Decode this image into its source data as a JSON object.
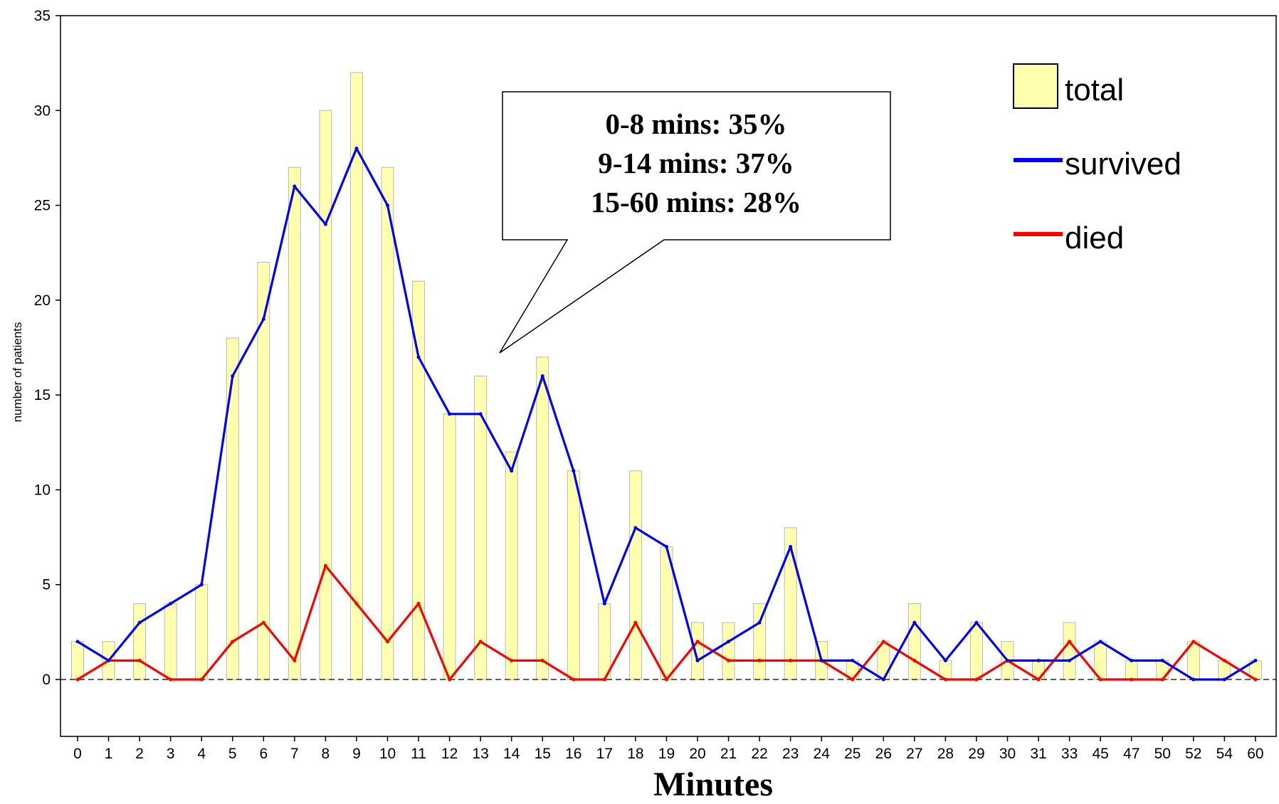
{
  "chart_data": {
    "type": "bar",
    "title": "",
    "xlabel": "Minutes",
    "ylabel": "number of patients",
    "ylim": [
      -3,
      35
    ],
    "yticks": [
      0,
      5,
      10,
      15,
      20,
      25,
      30,
      35
    ],
    "grid": false,
    "legend_position": "top-right",
    "categories": [
      "0",
      "1",
      "2",
      "3",
      "4",
      "5",
      "6",
      "7",
      "8",
      "9",
      "10",
      "11",
      "12",
      "13",
      "14",
      "15",
      "16",
      "17",
      "18",
      "19",
      "20",
      "21",
      "22",
      "23",
      "24",
      "25",
      "26",
      "27",
      "28",
      "29",
      "30",
      "31",
      "33",
      "45",
      "47",
      "50",
      "52",
      "54",
      "60"
    ],
    "series": [
      {
        "name": "total",
        "kind": "bar",
        "color": "#FFFFB0",
        "edge": "#B8B8B8",
        "values": [
          2,
          2,
          4,
          4,
          5,
          18,
          22,
          27,
          30,
          32,
          27,
          21,
          14,
          16,
          12,
          17,
          11,
          4,
          11,
          7,
          3,
          3,
          4,
          8,
          2,
          1,
          2,
          4,
          1,
          3,
          2,
          1,
          3,
          2,
          1,
          1,
          2,
          1,
          1
        ]
      },
      {
        "name": "survived",
        "kind": "line",
        "color": "#0000FF",
        "values": [
          2,
          1,
          3,
          4,
          5,
          16,
          19,
          26,
          24,
          28,
          25,
          17,
          14,
          14,
          11,
          16,
          11,
          4,
          8,
          7,
          1,
          2,
          3,
          7,
          1,
          1,
          0,
          3,
          1,
          3,
          1,
          1,
          1,
          2,
          1,
          1,
          0,
          0,
          1
        ]
      },
      {
        "name": "died",
        "kind": "line",
        "color": "#FF0000",
        "values": [
          0,
          1,
          1,
          0,
          0,
          2,
          3,
          1,
          6,
          4,
          2,
          4,
          0,
          2,
          1,
          1,
          0,
          0,
          3,
          0,
          2,
          1,
          1,
          1,
          1,
          0,
          2,
          1,
          0,
          0,
          1,
          0,
          2,
          0,
          0,
          0,
          2,
          1,
          0
        ]
      }
    ],
    "annotation": [
      "0-8 mins: 35%",
      "9-14 mins: 37%",
      "15-60 mins: 28%"
    ]
  }
}
